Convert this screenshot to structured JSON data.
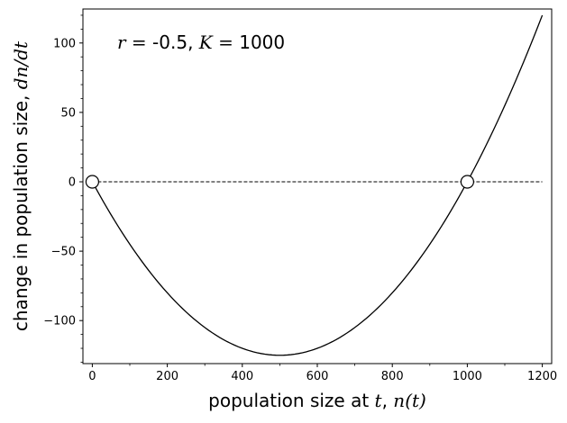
{
  "chart_data": {
    "type": "line",
    "annotation": {
      "r_symbol": "r",
      "equals": " = ",
      "r_value": "-0.5",
      "sep": ", ",
      "k_symbol": "K",
      "k_value": "1000"
    },
    "xlabel": {
      "prefix": "population size at ",
      "t_symbol": "t",
      "sep": ", ",
      "n_symbol": "n",
      "n_arg": "(t)"
    },
    "ylabel": {
      "prefix": "change in population size, ",
      "d1": "d",
      "n_symbol": "n",
      "slash": "/",
      "d2": "d",
      "t_symbol": "t"
    },
    "xlim": [
      -25,
      1225
    ],
    "ylim": [
      -131,
      124.5
    ],
    "xticks": [
      0,
      200,
      400,
      600,
      800,
      1000,
      1200
    ],
    "xtick_labels": [
      "0",
      "200",
      "400",
      "600",
      "800",
      "1000",
      "1200"
    ],
    "yticks": [
      -100,
      -50,
      0,
      50,
      100
    ],
    "ytick_labels": [
      "−100",
      "−50",
      "0",
      "50",
      "100"
    ],
    "x_minor_step": 100,
    "y_minor_step": 10,
    "curve": {
      "r": -0.5,
      "K": 1000,
      "x_range": [
        0,
        1200
      ],
      "samples": 121,
      "color": "#000000"
    },
    "zero_line": {
      "y": 0,
      "x_range": [
        0,
        1200
      ],
      "style": "dashed",
      "color": "#000000"
    },
    "equilibria": [
      {
        "x": 0,
        "y": 0
      },
      {
        "x": 1000,
        "y": 0
      }
    ],
    "marker_fill": "#ffffff",
    "marker_stroke": "#000000",
    "grid": false,
    "legend": "none"
  }
}
